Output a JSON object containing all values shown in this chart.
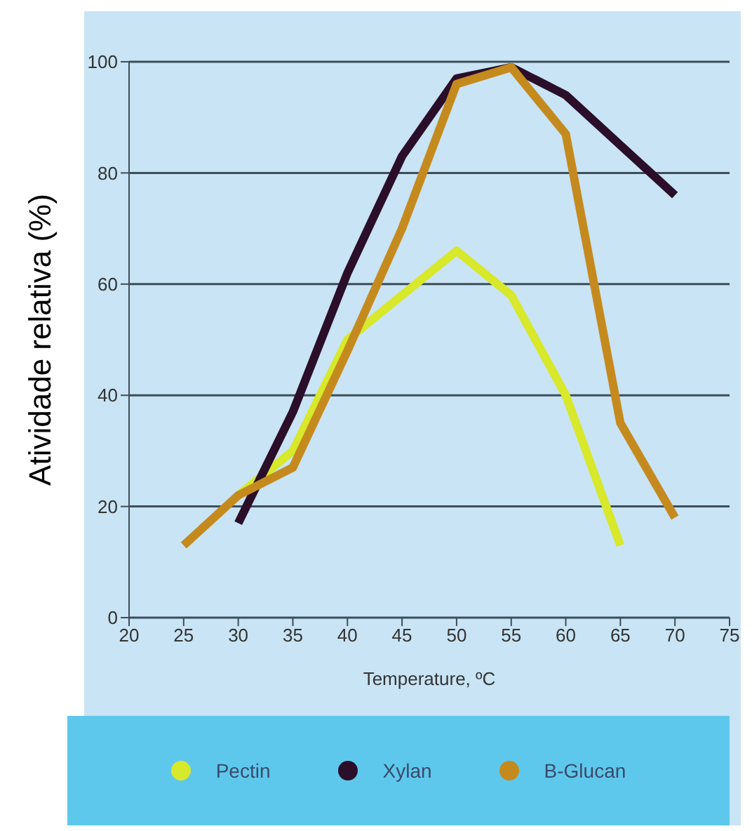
{
  "chart_data": {
    "type": "line",
    "xlabel": "Temperature, ºC",
    "ylabel": "Atividade relativa (%)",
    "x": [
      25,
      30,
      35,
      40,
      45,
      50,
      55,
      60,
      65,
      70
    ],
    "series": [
      {
        "name": "Pectin",
        "color": "#d8e82a",
        "values": [
          null,
          22,
          30,
          50,
          58,
          66,
          58,
          40,
          13,
          null
        ]
      },
      {
        "name": "Xylan",
        "color": "#2a0e2a",
        "values": [
          null,
          17,
          37,
          62,
          83,
          97,
          99,
          94,
          85,
          76
        ]
      },
      {
        "name": "B-Glucan",
        "color": "#c58a1e",
        "values": [
          13,
          22,
          27,
          48,
          70,
          96,
          99,
          87,
          35,
          18
        ]
      }
    ],
    "xlim": [
      20,
      75
    ],
    "xticks": [
      20,
      25,
      30,
      35,
      40,
      45,
      50,
      55,
      60,
      65,
      70,
      75
    ],
    "ylim": [
      0,
      100
    ],
    "yticks": [
      0,
      20,
      40,
      60,
      80,
      100
    ],
    "grid": "y",
    "legend": "bottom",
    "marker": "none",
    "line_style": "solid"
  }
}
